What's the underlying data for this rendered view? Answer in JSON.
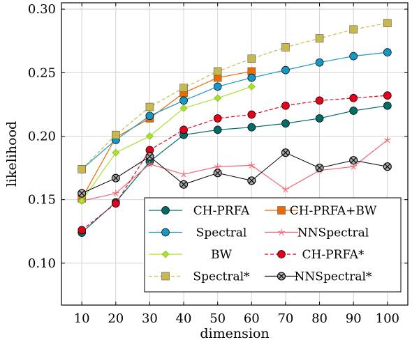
{
  "chart_data": {
    "type": "line",
    "title": "",
    "xlabel": "dimension",
    "ylabel": "likelihood",
    "x": [
      10,
      20,
      30,
      40,
      50,
      60,
      70,
      80,
      90,
      100
    ],
    "xlim": [
      4,
      106
    ],
    "ylim": [
      0.067,
      0.305
    ],
    "xticks": [
      10,
      20,
      30,
      40,
      50,
      60,
      70,
      80,
      90,
      100
    ],
    "yticks": [
      0.1,
      0.15,
      0.2,
      0.25,
      0.3
    ],
    "ytick_labels": [
      "0.10",
      "0.15",
      "0.20",
      "0.25",
      "0.30"
    ],
    "grid": true,
    "legend_position": "bottom-right",
    "series": [
      {
        "name": "CH-PRFA",
        "color": "#006c66",
        "dash": "solid",
        "marker": "circle",
        "values": [
          0.124,
          0.148,
          0.18,
          0.201,
          0.205,
          0.207,
          0.21,
          0.214,
          0.22,
          0.224
        ]
      },
      {
        "name": "CH-PRFA+BW",
        "color": "#ea6a00",
        "dash": "solid",
        "marker": "square",
        "values": [
          0.151,
          0.199,
          0.214,
          0.234,
          0.246,
          0.251,
          null,
          null,
          null,
          null
        ]
      },
      {
        "name": "Spectral",
        "color": "#1697c4",
        "dash": "solid",
        "marker": "circle",
        "values": [
          0.174,
          0.197,
          0.216,
          0.228,
          0.239,
          0.246,
          0.252,
          0.258,
          0.263,
          0.266
        ]
      },
      {
        "name": "NNSpectral",
        "color": "#f26670",
        "dash": "solid",
        "marker": "star",
        "values": [
          0.149,
          0.155,
          0.178,
          0.17,
          0.176,
          0.177,
          0.158,
          0.173,
          0.176,
          0.197
        ]
      },
      {
        "name": "BW",
        "color": "#a6e22e",
        "dash": "solid",
        "marker": "diamond",
        "values": [
          0.149,
          0.187,
          0.2,
          0.222,
          0.23,
          0.239,
          null,
          null,
          null,
          null
        ]
      },
      {
        "name": "CH-PRFA*",
        "color": "#e3001b",
        "dash": "dashed",
        "marker": "circle",
        "values": [
          0.126,
          0.147,
          0.189,
          0.205,
          0.214,
          0.217,
          0.224,
          0.228,
          0.23,
          0.232
        ]
      },
      {
        "name": "Spectral*",
        "color": "#c8b84e",
        "dash": "dashed",
        "marker": "square",
        "values": [
          0.174,
          0.201,
          0.223,
          0.238,
          0.251,
          0.261,
          0.27,
          0.277,
          0.284,
          0.289
        ]
      },
      {
        "name": "NNSpectral*",
        "color": "#000000",
        "dash": "solid",
        "marker": "otimes",
        "values": [
          0.155,
          0.167,
          0.184,
          0.162,
          0.171,
          0.165,
          0.187,
          0.175,
          0.181,
          0.176
        ]
      }
    ]
  }
}
